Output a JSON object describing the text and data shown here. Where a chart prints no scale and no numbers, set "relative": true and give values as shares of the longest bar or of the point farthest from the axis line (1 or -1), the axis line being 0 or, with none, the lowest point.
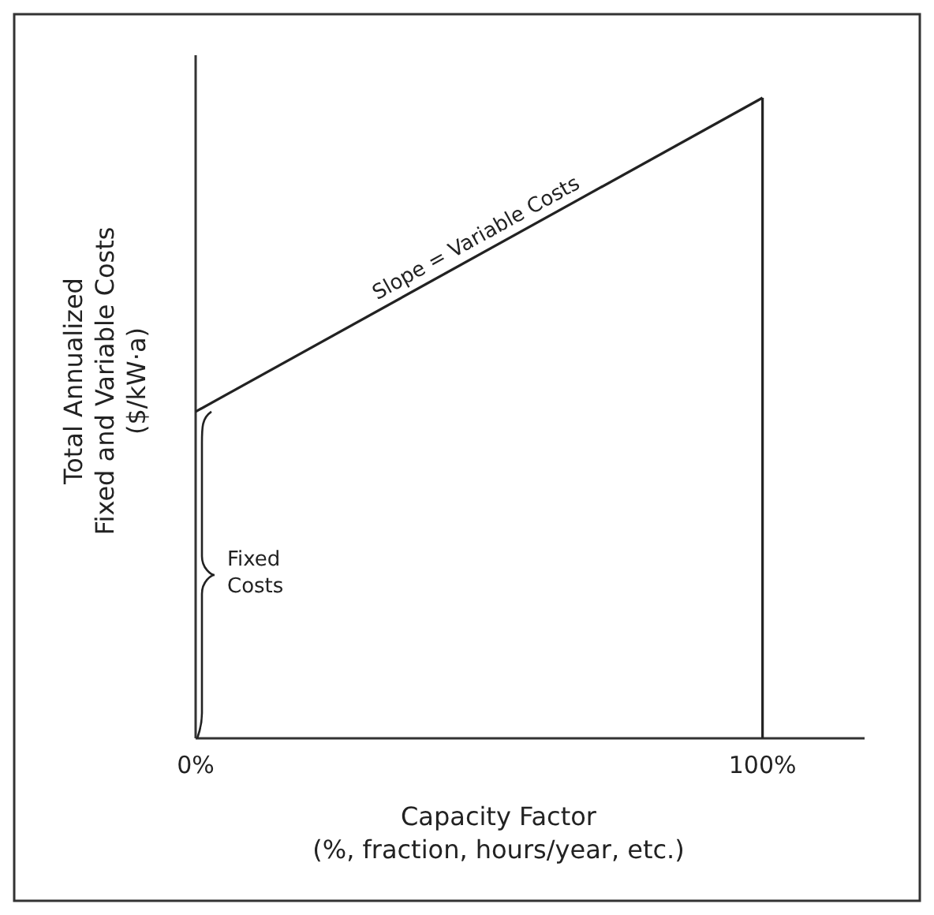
{
  "chart_data": {
    "type": "line",
    "relative": true,
    "xlabel": "Capacity Factor\n(%, fraction, hours/year, etc.)",
    "ylabel": "Total Annualized\nFixed and Variable Costs\n($/kW·a)",
    "xlim": [
      0,
      118
    ],
    "xticks": [
      {
        "value": 0,
        "label": "0%"
      },
      {
        "value": 100,
        "label": "100%"
      }
    ],
    "x": [
      0,
      100
    ],
    "series": [
      {
        "color": "#222222",
        "values": [
          0.51,
          1
        ]
      }
    ],
    "ref_lines": [
      {
        "axis": "x",
        "value": 100,
        "color": "#222222"
      }
    ],
    "marker": "none",
    "line_style": "solid",
    "grid": false,
    "annotations": [
      {
        "text": "Slope = Variable Costs",
        "x": 50,
        "y": 0.755
      },
      "Fixed\nCosts"
    ]
  }
}
